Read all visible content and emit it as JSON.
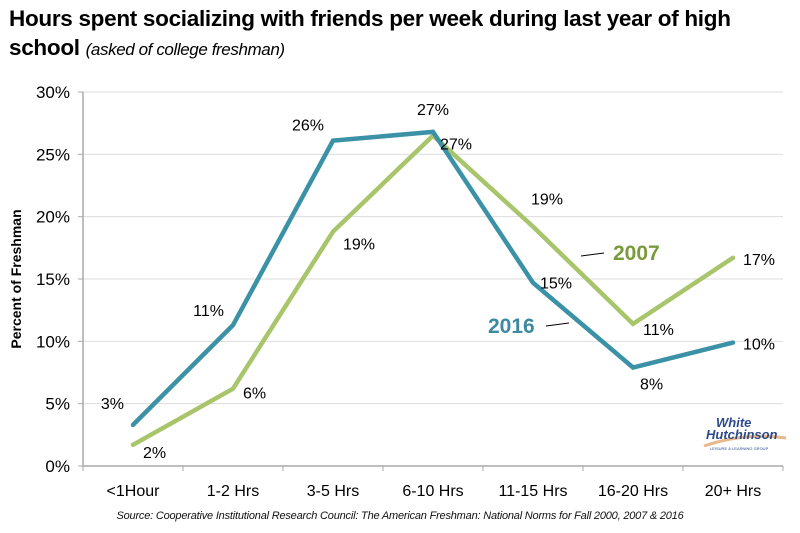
{
  "colors": {
    "series_2016": "#3b92a6",
    "series_2007": "#a8c56b",
    "label_2007": "#7a9b3b",
    "label_2016": "#3b8aa0",
    "grid": "#dddddd",
    "axis": "#aaaaaa"
  },
  "chart_data": {
    "type": "line",
    "title": "Hours spent socializing with friends per week during last year of high school",
    "subtitle": "(asked of college freshman)",
    "xlabel": "",
    "ylabel": "Percent of Freshman",
    "categories": [
      "<1Hour",
      "1-2 Hrs",
      "3-5 Hrs",
      "6-10 Hrs",
      "11-15 Hrs",
      "16-20 Hrs",
      "20+ Hrs"
    ],
    "ylim": [
      0,
      30
    ],
    "yticks": [
      0,
      5,
      10,
      15,
      20,
      25,
      30
    ],
    "ytick_labels": [
      "0%",
      "5%",
      "10%",
      "15%",
      "20%",
      "25%",
      "30%"
    ],
    "grid": true,
    "series": [
      {
        "name": "2016",
        "values": [
          3.3,
          11.3,
          26.1,
          26.8,
          14.7,
          7.9,
          9.9
        ],
        "data_labels": [
          "3%",
          "11%",
          "26%",
          "27%",
          "15%",
          "8%",
          "10%"
        ]
      },
      {
        "name": "2007",
        "values": [
          1.7,
          6.2,
          18.8,
          26.5,
          19.2,
          11.4,
          16.7
        ],
        "data_labels": [
          "2%",
          "6%",
          "19%",
          "27%",
          "19%",
          "11%",
          "17%"
        ]
      }
    ],
    "annotations": [
      "2007",
      "2016"
    ],
    "legend": "inline"
  },
  "logo": {
    "line1": "White",
    "line2": "Hutchinson",
    "tagline": "LEISURE & LEARNING GROUP"
  },
  "source": "Source: Cooperative Institutional Research Council: The American Freshman: National Norms for Fall 2000, 2007 & 2016"
}
